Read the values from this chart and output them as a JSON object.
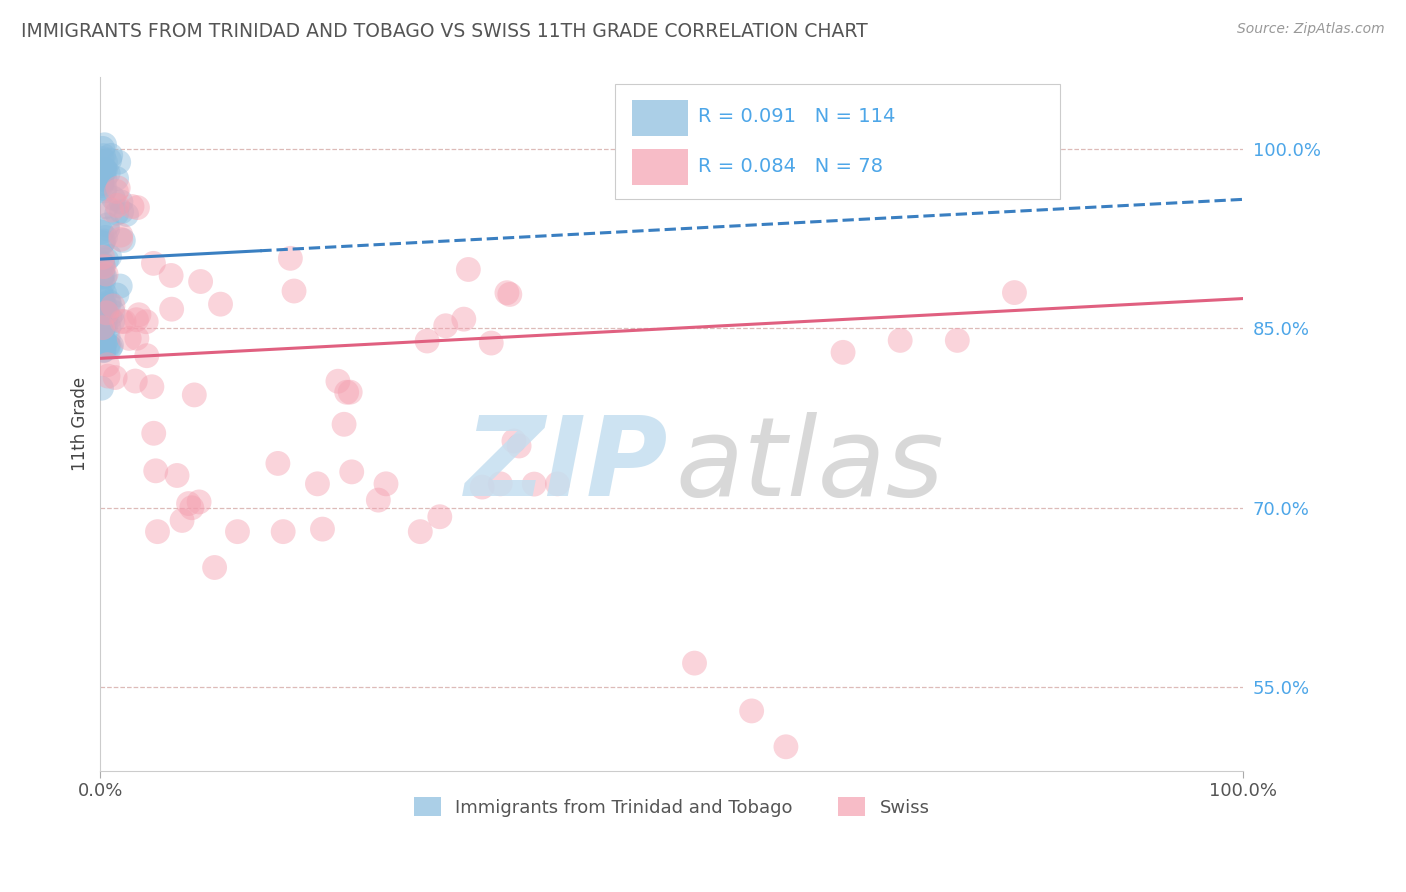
{
  "title": "IMMIGRANTS FROM TRINIDAD AND TOBAGO VS SWISS 11TH GRADE CORRELATION CHART",
  "source": "Source: ZipAtlas.com",
  "ylabel": "11th Grade",
  "xlim": [
    0.0,
    1.0
  ],
  "ylim": [
    0.48,
    1.06
  ],
  "ytick_positions": [
    0.55,
    0.7,
    0.85,
    1.0
  ],
  "ytick_labels": [
    "55.0%",
    "70.0%",
    "85.0%",
    "100.0%"
  ],
  "blue_color": "#88bbdd",
  "pink_color": "#f4a0b0",
  "blue_trend_color": "#3a7fc1",
  "pink_trend_color": "#e06080",
  "legend_blue_R": "0.091",
  "legend_blue_N": "114",
  "legend_pink_R": "0.084",
  "legend_pink_N": "78",
  "blue_trend_y_start": 0.908,
  "blue_trend_y_end": 0.958,
  "pink_trend_y_start": 0.825,
  "pink_trend_y_end": 0.875,
  "background_color": "#ffffff",
  "grid_color": "#ddbbb8",
  "title_color": "#555555",
  "source_color": "#999999",
  "tick_color": "#4da6e8",
  "watermark_zip_color": "#c5dff0",
  "watermark_atlas_color": "#cccccc"
}
